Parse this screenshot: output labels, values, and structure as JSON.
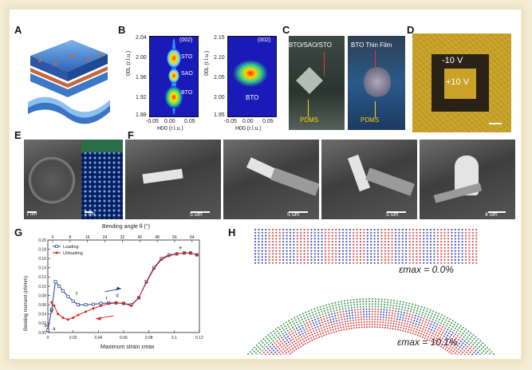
{
  "panels": {
    "A": "A",
    "B": "B",
    "C": "C",
    "D": "D",
    "E": "E",
    "F": "F",
    "G": "G",
    "H": "H"
  },
  "panel_b": {
    "left": {
      "tag": "(002)",
      "ylabel": "00L (r.l.u.)",
      "xlabel": "H00 (r.l.u.)",
      "yticks": [
        "2.04",
        "2.00",
        "1.96",
        "1.92",
        "1.88"
      ],
      "xticks": [
        "-0.05",
        "0.00",
        "0.05"
      ],
      "layers": [
        "STO",
        "SAO",
        "BTO"
      ]
    },
    "right": {
      "tag": "(002)",
      "ylabel": "00L (r.l.u.)",
      "xlabel": "H00 (r.l.u.)",
      "yticks": [
        "2.15",
        "2.10",
        "2.05",
        "2.00",
        "1.95"
      ],
      "xticks": [
        "-0.05",
        "0.00",
        "0.05"
      ],
      "layer": "BTO"
    }
  },
  "panel_c": {
    "left_title": "BTO/SAO/STO",
    "left_base": "PDMS",
    "right_title": "BTO Thin Film",
    "right_base": "PDMS"
  },
  "panel_d": {
    "outer": "-10 V",
    "inner": "+10 V"
  },
  "panel_e": {
    "scale_left": "1 um",
    "scale_right": "1 nm"
  },
  "panel_f": {
    "scales": [
      "5 um",
      "5 um",
      "5 um",
      "4 um"
    ]
  },
  "panel_g": {
    "top_axis_label": "Bending angle θ (°)",
    "top_ticks": [
      "0",
      "8",
      "16",
      "24",
      "32",
      "40",
      "48",
      "56",
      "64"
    ],
    "ylabel": "Bending moment (nN•nm)",
    "xlabel": "Maximum strain εmax",
    "point_labels": [
      "a",
      "b",
      "c",
      "d",
      "e",
      "f",
      "g"
    ]
  },
  "panel_h": {
    "top_strain": "εmax = 0.0%",
    "bottom_strain": "εmax = 10.1%"
  },
  "chart_data": {
    "type": "line",
    "title": "",
    "xlabel": "Maximum strain εmax",
    "ylabel": "Bending moment (nN•nm)",
    "xlim": [
      0,
      0.12
    ],
    "ylim": [
      0,
      0.2
    ],
    "xticks": [
      0,
      0.02,
      0.04,
      0.06,
      0.08,
      0.1,
      0.12
    ],
    "yticks": [
      0,
      0.02,
      0.04,
      0.06,
      0.08,
      0.1,
      0.12,
      0.14,
      0.16,
      0.18,
      0.2
    ],
    "legend_position": "top-left",
    "series": [
      {
        "name": "Loading",
        "color": "#1f3b8c",
        "marker": "square-open",
        "x": [
          0.0,
          0.003,
          0.006,
          0.009,
          0.012,
          0.016,
          0.02,
          0.024,
          0.03,
          0.036,
          0.042,
          0.048,
          0.054,
          0.06,
          0.066,
          0.072,
          0.078,
          0.084,
          0.09,
          0.096,
          0.102,
          0.108,
          0.113,
          0.118
        ],
        "y": [
          0.005,
          0.05,
          0.11,
          0.1,
          0.09,
          0.078,
          0.068,
          0.06,
          0.06,
          0.061,
          0.063,
          0.064,
          0.064,
          0.063,
          0.06,
          0.075,
          0.11,
          0.14,
          0.16,
          0.168,
          0.17,
          0.172,
          0.172,
          0.168
        ]
      },
      {
        "name": "Unloading",
        "color": "#d42020",
        "marker": "circle-filled",
        "x": [
          0.118,
          0.113,
          0.108,
          0.102,
          0.096,
          0.09,
          0.084,
          0.078,
          0.072,
          0.066,
          0.06,
          0.054,
          0.048,
          0.042,
          0.036,
          0.03,
          0.024,
          0.02,
          0.016,
          0.012,
          0.008,
          0.005,
          0.003
        ],
        "y": [
          0.168,
          0.172,
          0.172,
          0.17,
          0.166,
          0.158,
          0.138,
          0.108,
          0.075,
          0.058,
          0.063,
          0.064,
          0.062,
          0.058,
          0.052,
          0.045,
          0.038,
          0.032,
          0.028,
          0.032,
          0.04,
          0.058,
          0.065
        ]
      }
    ]
  }
}
